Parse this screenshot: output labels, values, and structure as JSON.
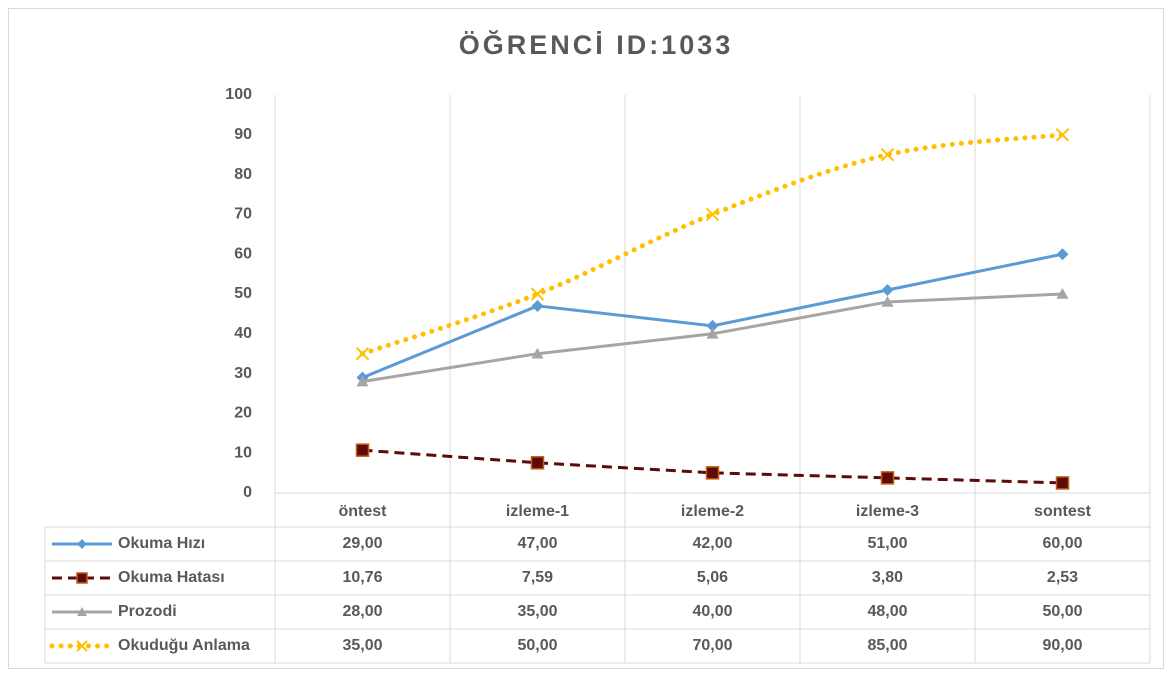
{
  "chart_data": {
    "type": "line",
    "title": "ÖĞRENCİ  ID:1033",
    "categories": [
      "öntest",
      "izleme-1",
      "izleme-2",
      "izleme-3",
      "sontest"
    ],
    "series": [
      {
        "name": "Okuma Hızı",
        "color": "#5b9bd5",
        "dash": "solid",
        "marker": "diamond",
        "values": [
          29,
          47,
          42,
          51,
          60
        ],
        "value_labels": [
          "29,00",
          "47,00",
          "42,00",
          "51,00",
          "60,00"
        ]
      },
      {
        "name": "Okuma Hatası",
        "color": "#5c0a0a",
        "dash": "dash",
        "marker": "square",
        "values": [
          10.76,
          7.59,
          5.06,
          3.8,
          2.53
        ],
        "value_labels": [
          "10,76",
          "7,59",
          "5,06",
          "3,80",
          "2,53"
        ]
      },
      {
        "name": "Prozodi",
        "color": "#a5a5a5",
        "dash": "solid",
        "marker": "triangle",
        "values": [
          28,
          35,
          40,
          48,
          50
        ],
        "value_labels": [
          "28,00",
          "35,00",
          "40,00",
          "48,00",
          "50,00"
        ]
      },
      {
        "name": "Okuduğu Anlama",
        "color": "#ffc000",
        "dash": "dot",
        "marker": "x",
        "smooth": true,
        "values": [
          35,
          50,
          70,
          85,
          90
        ],
        "value_labels": [
          "35,00",
          "50,00",
          "70,00",
          "85,00",
          "90,00"
        ]
      }
    ],
    "ylim": [
      0,
      100
    ],
    "yticks": [
      0,
      10,
      20,
      30,
      40,
      50,
      60,
      70,
      80,
      90,
      100
    ],
    "x_grid": true,
    "data_table": true
  }
}
